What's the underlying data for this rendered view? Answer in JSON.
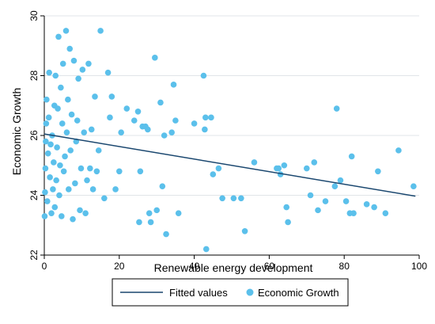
{
  "chart_data": {
    "type": "scatter",
    "xlabel": "Renewable energy development",
    "ylabel": "Economic Growth",
    "xlim": [
      0,
      100
    ],
    "ylim": [
      22,
      30
    ],
    "x_ticks": [
      0,
      20,
      40,
      60,
      80,
      100
    ],
    "y_ticks": [
      22,
      24,
      26,
      28,
      30
    ],
    "grid": "horizontal",
    "legend_position": "bottom",
    "colors": {
      "points": "#5bc0eb",
      "fitted_line": "#1a476f",
      "grid": "#e1e5e8"
    },
    "series": [
      {
        "name": "Fitted values",
        "kind": "line",
        "points": [
          [
            0,
            26.05
          ],
          [
            99,
            23.97
          ]
        ]
      },
      {
        "name": "Economic Growth",
        "kind": "scatter",
        "points": [
          [
            0.1,
            23.3
          ],
          [
            0.2,
            24.1
          ],
          [
            0.3,
            24.9
          ],
          [
            0.4,
            25.8
          ],
          [
            0.5,
            26.4
          ],
          [
            0.6,
            27.2
          ],
          [
            0.8,
            23.8
          ],
          [
            1.0,
            25.4
          ],
          [
            1.2,
            26.6
          ],
          [
            1.3,
            28.1
          ],
          [
            1.5,
            24.6
          ],
          [
            1.7,
            25.7
          ],
          [
            1.9,
            23.4
          ],
          [
            2.1,
            26.0
          ],
          [
            2.3,
            24.2
          ],
          [
            2.5,
            25.1
          ],
          [
            2.7,
            27.0
          ],
          [
            2.8,
            23.6
          ],
          [
            3.0,
            28.0
          ],
          [
            3.2,
            24.5
          ],
          [
            3.4,
            25.6
          ],
          [
            3.6,
            26.9
          ],
          [
            3.8,
            29.3
          ],
          [
            4.0,
            24.0
          ],
          [
            4.2,
            25.0
          ],
          [
            4.4,
            27.6
          ],
          [
            4.6,
            23.3
          ],
          [
            4.8,
            26.4
          ],
          [
            5.0,
            28.4
          ],
          [
            5.2,
            24.8
          ],
          [
            5.5,
            25.3
          ],
          [
            5.8,
            29.5
          ],
          [
            6.0,
            26.1
          ],
          [
            6.3,
            27.2
          ],
          [
            6.5,
            24.2
          ],
          [
            6.8,
            28.9
          ],
          [
            7.0,
            25.5
          ],
          [
            7.3,
            26.7
          ],
          [
            7.6,
            23.2
          ],
          [
            7.9,
            28.5
          ],
          [
            8.2,
            24.4
          ],
          [
            8.5,
            25.8
          ],
          [
            8.8,
            26.5
          ],
          [
            9.1,
            27.9
          ],
          [
            9.5,
            23.5
          ],
          [
            9.8,
            24.9
          ],
          [
            10.2,
            28.2
          ],
          [
            10.6,
            26.1
          ],
          [
            11.0,
            23.4
          ],
          [
            11.4,
            24.5
          ],
          [
            11.8,
            28.4
          ],
          [
            12.2,
            24.9
          ],
          [
            12.6,
            26.2
          ],
          [
            13.0,
            24.2
          ],
          [
            13.5,
            27.3
          ],
          [
            14.0,
            24.8
          ],
          [
            14.5,
            25.5
          ],
          [
            15.0,
            29.5
          ],
          [
            16.0,
            23.9
          ],
          [
            17.0,
            28.1
          ],
          [
            17.5,
            26.6
          ],
          [
            18.0,
            27.3
          ],
          [
            19.0,
            24.2
          ],
          [
            20.0,
            24.8
          ],
          [
            20.5,
            26.1
          ],
          [
            22.0,
            26.9
          ],
          [
            24.0,
            26.5
          ],
          [
            25.0,
            26.8
          ],
          [
            25.3,
            23.1
          ],
          [
            25.6,
            24.8
          ],
          [
            26.2,
            26.3
          ],
          [
            27.0,
            26.3
          ],
          [
            27.6,
            26.2
          ],
          [
            28.0,
            23.4
          ],
          [
            28.4,
            23.1
          ],
          [
            29.5,
            28.6
          ],
          [
            30.0,
            23.5
          ],
          [
            31.0,
            27.1
          ],
          [
            31.5,
            24.3
          ],
          [
            32.0,
            26.0
          ],
          [
            32.5,
            22.7
          ],
          [
            34.0,
            26.1
          ],
          [
            34.5,
            27.7
          ],
          [
            35.0,
            26.5
          ],
          [
            35.8,
            23.4
          ],
          [
            40.0,
            26.4
          ],
          [
            42.5,
            28.0
          ],
          [
            42.8,
            26.2
          ],
          [
            43.0,
            26.6
          ],
          [
            43.2,
            22.2
          ],
          [
            44.5,
            26.6
          ],
          [
            45.0,
            24.7
          ],
          [
            46.5,
            24.9
          ],
          [
            47.5,
            23.9
          ],
          [
            50.5,
            23.9
          ],
          [
            52.5,
            23.9
          ],
          [
            53.5,
            22.8
          ],
          [
            56.0,
            25.1
          ],
          [
            62.0,
            24.9
          ],
          [
            62.5,
            24.9
          ],
          [
            63.0,
            24.7
          ],
          [
            64.0,
            25.0
          ],
          [
            64.6,
            23.6
          ],
          [
            65.0,
            23.1
          ],
          [
            70.0,
            24.9
          ],
          [
            71.0,
            24.0
          ],
          [
            72.0,
            25.1
          ],
          [
            73.0,
            23.5
          ],
          [
            75.0,
            23.8
          ],
          [
            77.5,
            24.3
          ],
          [
            78.0,
            26.9
          ],
          [
            79.0,
            24.5
          ],
          [
            80.5,
            23.8
          ],
          [
            81.5,
            23.4
          ],
          [
            82.0,
            25.3
          ],
          [
            82.5,
            23.4
          ],
          [
            86.0,
            23.7
          ],
          [
            88.0,
            23.6
          ],
          [
            89.0,
            24.8
          ],
          [
            91.0,
            23.4
          ],
          [
            94.5,
            25.5
          ],
          [
            98.5,
            24.3
          ]
        ]
      }
    ]
  }
}
